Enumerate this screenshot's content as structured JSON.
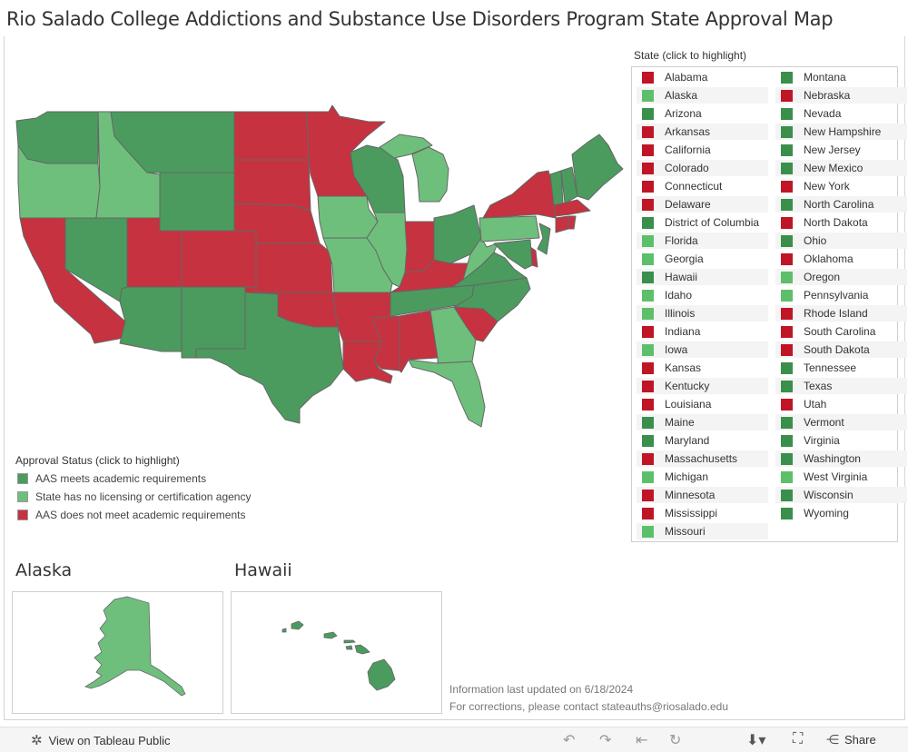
{
  "title": "Rio Salado College Addictions and Substance Use Disorders Program State Approval Map",
  "colors": {
    "meets": "#4b9b5f",
    "no_agency": "#6fbf7c",
    "not_meet": "#c6323f",
    "swatch_meets": "#3a8f4c",
    "swatch_no_agency": "#5ebf6a",
    "swatch_not_meet": "#c01526"
  },
  "legend": {
    "title": "Approval Status (click to highlight)",
    "items": [
      {
        "label": "AAS meets academic requirements",
        "status": "meets"
      },
      {
        "label": "State has no licensing or certification agency",
        "status": "no_agency"
      },
      {
        "label": "AAS does not meet academic requirements",
        "status": "not_meet"
      }
    ]
  },
  "state_list": {
    "title": "State (click to highlight)",
    "states": [
      {
        "name": "Alabama",
        "status": "not_meet"
      },
      {
        "name": "Alaska",
        "status": "no_agency"
      },
      {
        "name": "Arizona",
        "status": "meets"
      },
      {
        "name": "Arkansas",
        "status": "not_meet"
      },
      {
        "name": "California",
        "status": "not_meet"
      },
      {
        "name": "Colorado",
        "status": "not_meet"
      },
      {
        "name": "Connecticut",
        "status": "not_meet"
      },
      {
        "name": "Delaware",
        "status": "not_meet"
      },
      {
        "name": "District of Columbia",
        "status": "meets"
      },
      {
        "name": "Florida",
        "status": "no_agency"
      },
      {
        "name": "Georgia",
        "status": "no_agency"
      },
      {
        "name": "Hawaii",
        "status": "meets"
      },
      {
        "name": "Idaho",
        "status": "no_agency"
      },
      {
        "name": "Illinois",
        "status": "no_agency"
      },
      {
        "name": "Indiana",
        "status": "not_meet"
      },
      {
        "name": "Iowa",
        "status": "no_agency"
      },
      {
        "name": "Kansas",
        "status": "not_meet"
      },
      {
        "name": "Kentucky",
        "status": "not_meet"
      },
      {
        "name": "Louisiana",
        "status": "not_meet"
      },
      {
        "name": "Maine",
        "status": "meets"
      },
      {
        "name": "Maryland",
        "status": "meets"
      },
      {
        "name": "Massachusetts",
        "status": "not_meet"
      },
      {
        "name": "Michigan",
        "status": "no_agency"
      },
      {
        "name": "Minnesota",
        "status": "not_meet"
      },
      {
        "name": "Mississippi",
        "status": "not_meet"
      },
      {
        "name": "Missouri",
        "status": "no_agency"
      },
      {
        "name": "Montana",
        "status": "meets"
      },
      {
        "name": "Nebraska",
        "status": "not_meet"
      },
      {
        "name": "Nevada",
        "status": "meets"
      },
      {
        "name": "New Hampshire",
        "status": "meets"
      },
      {
        "name": "New Jersey",
        "status": "meets"
      },
      {
        "name": "New Mexico",
        "status": "meets"
      },
      {
        "name": "New York",
        "status": "not_meet"
      },
      {
        "name": "North Carolina",
        "status": "meets"
      },
      {
        "name": "North Dakota",
        "status": "not_meet"
      },
      {
        "name": "Ohio",
        "status": "meets"
      },
      {
        "name": "Oklahoma",
        "status": "not_meet"
      },
      {
        "name": "Oregon",
        "status": "no_agency"
      },
      {
        "name": "Pennsylvania",
        "status": "no_agency"
      },
      {
        "name": "Rhode Island",
        "status": "not_meet"
      },
      {
        "name": "South Carolina",
        "status": "not_meet"
      },
      {
        "name": "South Dakota",
        "status": "not_meet"
      },
      {
        "name": "Tennessee",
        "status": "meets"
      },
      {
        "name": "Texas",
        "status": "meets"
      },
      {
        "name": "Utah",
        "status": "not_meet"
      },
      {
        "name": "Vermont",
        "status": "meets"
      },
      {
        "name": "Virginia",
        "status": "meets"
      },
      {
        "name": "Washington",
        "status": "meets"
      },
      {
        "name": "West Virginia",
        "status": "no_agency"
      },
      {
        "name": "Wisconsin",
        "status": "meets"
      },
      {
        "name": "Wyoming",
        "status": "meets"
      }
    ]
  },
  "insets": {
    "alaska_title": "Alaska",
    "hawaii_title": "Hawaii"
  },
  "info": {
    "updated": "Information last updated on 6/18/2024",
    "corrections": "For corrections, please contact stateauths@riosalado.edu"
  },
  "toolbar": {
    "view_label": "View on Tableau Public",
    "share_label": "Share",
    "icons": [
      "undo-icon",
      "redo-icon",
      "revert-icon",
      "refresh-icon",
      "download-icon",
      "fullscreen-icon",
      "share-icon"
    ]
  }
}
